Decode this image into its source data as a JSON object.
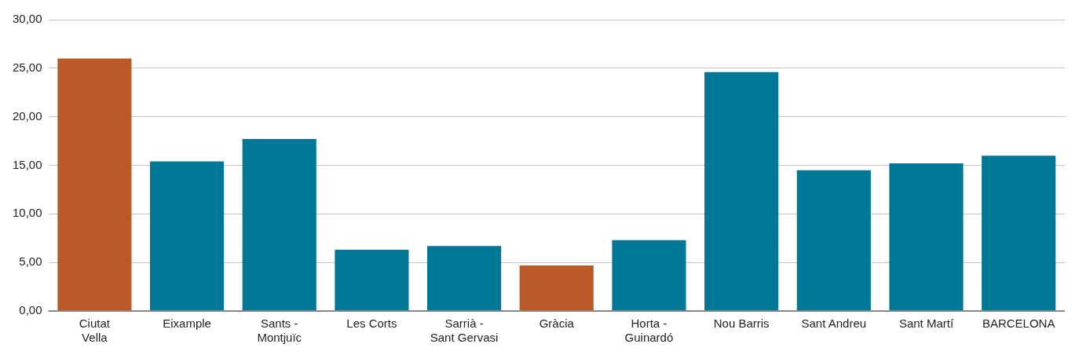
{
  "chart_data": {
    "type": "bar",
    "categories": [
      "Ciutat Vella",
      "Eixample",
      "Sants - Montjuïc",
      "Les Corts",
      "Sarrià - Sant Gervasi",
      "Gràcia",
      "Horta - Guinardó",
      "Nou Barris",
      "Sant Andreu",
      "Sant Martí",
      "BARCELONA"
    ],
    "values": [
      26.0,
      15.4,
      17.7,
      6.3,
      6.7,
      4.7,
      7.3,
      24.6,
      14.5,
      15.2,
      16.0
    ],
    "colors": [
      "#b95a28",
      "#007895",
      "#007895",
      "#007895",
      "#007895",
      "#b95a28",
      "#007895",
      "#007895",
      "#007895",
      "#007895",
      "#007895"
    ],
    "ylim": [
      0,
      30
    ],
    "yticks": [
      {
        "value": 0,
        "label": "0,00"
      },
      {
        "value": 5,
        "label": "5,00"
      },
      {
        "value": 10,
        "label": "10,00"
      },
      {
        "value": 15,
        "label": "15,00"
      },
      {
        "value": 20,
        "label": "20,00"
      },
      {
        "value": 25,
        "label": "25,00"
      },
      {
        "value": 30,
        "label": "30,00"
      }
    ],
    "grid": "y",
    "legend": false
  }
}
